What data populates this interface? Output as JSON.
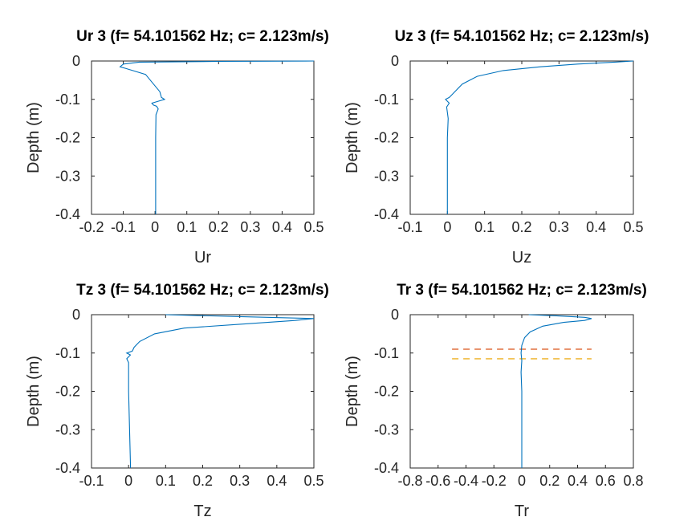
{
  "colors": {
    "series": "#0072BD",
    "dash1": "#D95319",
    "dash2": "#EDB120",
    "axis": "#262626"
  },
  "chart_data": [
    {
      "type": "line",
      "title": "Ur 3 (f= 54.101562 Hz; c= 2.123m/s)",
      "xlabel": "Ur",
      "ylabel": "Depth (m)",
      "xlim": [
        -0.2,
        0.5
      ],
      "ylim": [
        -0.4,
        0
      ],
      "xticks": [
        "-0.2",
        "-0.1",
        "0",
        "0.1",
        "0.2",
        "0.3",
        "0.4",
        "0.5"
      ],
      "yticks": [
        "-0.4",
        "-0.3",
        "-0.2",
        "-0.1",
        "0"
      ],
      "series": [
        {
          "x": [
            0.5,
            0.2,
            -0.05,
            -0.1,
            -0.11,
            -0.09,
            -0.03,
            -0.005,
            0.015,
            0.02,
            0.03,
            0.01,
            -0.01,
            -0.005,
            0.005,
            0.01,
            0.003,
            0.002,
            0.002
          ],
          "y": [
            0,
            -0.001,
            -0.003,
            -0.008,
            -0.015,
            -0.02,
            -0.035,
            -0.06,
            -0.08,
            -0.095,
            -0.1,
            -0.105,
            -0.11,
            -0.115,
            -0.118,
            -0.125,
            -0.14,
            -0.2,
            -0.4
          ]
        }
      ]
    },
    {
      "type": "line",
      "title": "Uz 3 (f= 54.101562 Hz; c= 2.123m/s)",
      "xlabel": "Uz",
      "ylabel": "Depth (m)",
      "xlim": [
        -0.1,
        0.5
      ],
      "ylim": [
        -0.4,
        0
      ],
      "xticks": [
        "-0.1",
        "0",
        "0.1",
        "0.2",
        "0.3",
        "0.4",
        "0.5"
      ],
      "yticks": [
        "-0.4",
        "-0.3",
        "-0.2",
        "-0.1",
        "0"
      ],
      "series": [
        {
          "x": [
            0.5,
            0.45,
            0.35,
            0.25,
            0.15,
            0.08,
            0.04,
            0.02,
            0.01,
            0.005,
            -0.005,
            0.005,
            -0.002,
            0.002,
            0.0,
            0.0
          ],
          "y": [
            0,
            -0.003,
            -0.008,
            -0.015,
            -0.025,
            -0.04,
            -0.06,
            -0.08,
            -0.09,
            -0.095,
            -0.1,
            -0.11,
            -0.12,
            -0.15,
            -0.2,
            -0.4
          ]
        }
      ]
    },
    {
      "type": "line",
      "title": "Tz 3 (f= 54.101562 Hz; c= 2.123m/s)",
      "xlabel": "Tz",
      "ylabel": "Depth (m)",
      "xlim": [
        -0.1,
        0.5
      ],
      "ylim": [
        -0.4,
        0
      ],
      "xticks": [
        "-0.1",
        "0",
        "0.1",
        "0.2",
        "0.3",
        "0.4",
        "0.5"
      ],
      "yticks": [
        "-0.4",
        "-0.3",
        "-0.2",
        "-0.1",
        "0"
      ],
      "series": [
        {
          "x": [
            0.1,
            0.3,
            0.5,
            0.45,
            0.3,
            0.15,
            0.07,
            0.03,
            0.015,
            0.01,
            -0.005,
            0.005,
            -0.005,
            0.0,
            0.0,
            0.005,
            0.005
          ],
          "y": [
            0,
            -0.005,
            -0.01,
            -0.015,
            -0.025,
            -0.035,
            -0.05,
            -0.07,
            -0.085,
            -0.095,
            -0.1,
            -0.105,
            -0.115,
            -0.125,
            -0.2,
            -0.39,
            -0.4
          ]
        }
      ]
    },
    {
      "type": "line",
      "title": "Tr 3 (f= 54.101562 Hz; c= 2.123m/s)",
      "xlabel": "Tr",
      "ylabel": "Depth (m)",
      "xlim": [
        -0.8,
        0.8
      ],
      "ylim": [
        -0.4,
        0
      ],
      "xticks": [
        "-0.8",
        "-0.6",
        "-0.4",
        "-0.2",
        "0",
        "0.2",
        "0.4",
        "0.6",
        "0.8"
      ],
      "yticks": [
        "-0.4",
        "-0.3",
        "-0.2",
        "-0.1",
        "0"
      ],
      "series": [
        {
          "x": [
            0.05,
            0.25,
            0.45,
            0.5,
            0.45,
            0.3,
            0.15,
            0.06,
            0.02,
            0.0,
            -0.005,
            0.0,
            -0.005,
            0.0,
            0.0
          ],
          "y": [
            0,
            -0.003,
            -0.007,
            -0.01,
            -0.015,
            -0.02,
            -0.03,
            -0.045,
            -0.06,
            -0.08,
            -0.1,
            -0.12,
            -0.15,
            -0.2,
            -0.4
          ]
        }
      ],
      "hlines": [
        {
          "y": -0.09,
          "x": [
            -0.5,
            0.5
          ],
          "color": "#D95319"
        },
        {
          "y": -0.115,
          "x": [
            -0.5,
            0.5
          ],
          "color": "#EDB120"
        }
      ]
    }
  ]
}
